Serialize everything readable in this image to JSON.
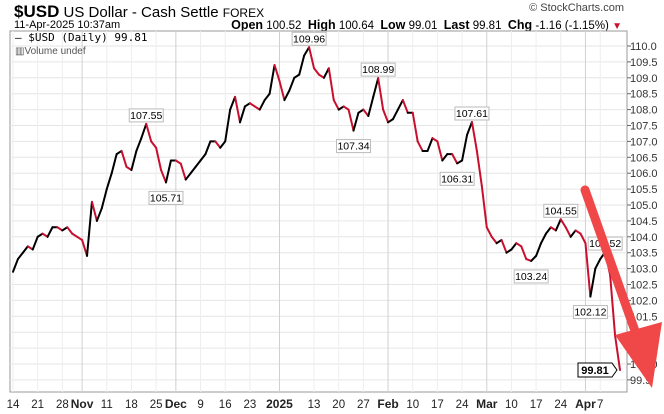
{
  "header": {
    "symbol": "$USD",
    "name": "US Dollar - Cash Settle",
    "exchange": "FOREX",
    "datetime": "11-Apr-2025 10:37am",
    "copyright": "© StockCharts.com",
    "open_label": "Open",
    "open": "100.52",
    "high_label": "High",
    "high": "100.64",
    "low_label": "Low",
    "low": "99.01",
    "last_label": "Last",
    "last": "99.81",
    "chg_label": "Chg",
    "chg": "-1.16 (-1.15%)"
  },
  "legend": {
    "series": "$USD (Daily) 99.81",
    "volume": "Volume undef"
  },
  "colors": {
    "up": "#000000",
    "down": "#c8102e",
    "arrow": "#f04848"
  },
  "chart_data": {
    "type": "line",
    "title": "$USD US Dollar - Cash Settle FOREX",
    "ylim": [
      99.3,
      110.9
    ],
    "yticks": [
      "99.5",
      "100.0",
      "100.5",
      "101.0",
      "101.5",
      "102.0",
      "102.5",
      "103.0",
      "103.5",
      "104.0",
      "104.5",
      "105.0",
      "105.5",
      "106.0",
      "106.5",
      "107.0",
      "107.5",
      "108.0",
      "108.5",
      "109.0",
      "109.5",
      "110.0"
    ],
    "xticks": [
      [
        "14",
        0
      ],
      [
        "21",
        5
      ],
      [
        "28",
        10
      ],
      [
        "Nov",
        14
      ],
      [
        "11",
        19
      ],
      [
        "18",
        24
      ],
      [
        "25",
        29
      ],
      [
        "Dec",
        33
      ],
      [
        "9",
        38
      ],
      [
        "16",
        43
      ],
      [
        "23",
        48
      ],
      [
        "2025",
        54
      ],
      [
        "13",
        61
      ],
      [
        "20",
        66
      ],
      [
        "27",
        71
      ],
      [
        "Feb",
        76
      ],
      [
        "10",
        81
      ],
      [
        "17",
        86
      ],
      [
        "24",
        91
      ],
      [
        "Mar",
        96
      ],
      [
        "10",
        101
      ],
      [
        "17",
        106
      ],
      [
        "24",
        111
      ],
      [
        "Apr",
        116
      ],
      [
        "7",
        119
      ]
    ],
    "values": [
      102.9,
      103.3,
      103.5,
      103.7,
      103.6,
      104.0,
      104.1,
      104.0,
      104.3,
      104.3,
      104.2,
      104.3,
      104.1,
      104.0,
      103.9,
      103.4,
      105.1,
      104.5,
      104.9,
      105.5,
      106.0,
      106.6,
      106.7,
      106.2,
      106.1,
      106.7,
      107.1,
      107.55,
      107.0,
      106.8,
      106.1,
      105.71,
      106.4,
      106.4,
      106.3,
      105.8,
      106.0,
      106.2,
      106.4,
      106.6,
      107.0,
      107.0,
      106.8,
      107.0,
      108.0,
      108.4,
      107.6,
      108.1,
      108.2,
      108.1,
      108.0,
      108.3,
      108.5,
      109.4,
      108.9,
      108.3,
      108.6,
      109.0,
      109.1,
      109.7,
      109.96,
      109.3,
      109.1,
      109.0,
      109.3,
      108.3,
      108.0,
      108.1,
      108.0,
      107.34,
      107.9,
      108.0,
      107.8,
      108.4,
      108.99,
      108.0,
      107.6,
      107.7,
      108.0,
      108.3,
      107.9,
      107.9,
      107.0,
      106.7,
      106.7,
      107.1,
      107.0,
      106.4,
      106.6,
      106.6,
      106.31,
      106.4,
      107.2,
      107.61,
      106.7,
      105.6,
      104.3,
      104.0,
      103.8,
      103.9,
      103.5,
      103.6,
      103.8,
      103.7,
      103.3,
      103.24,
      103.4,
      103.8,
      104.1,
      104.3,
      104.2,
      104.55,
      104.3,
      104.0,
      104.2,
      104.1,
      103.8,
      102.12,
      103.0,
      103.3,
      103.52,
      102.8,
      100.9,
      99.81
    ],
    "annotations": [
      [
        "107.55",
        27,
        "up"
      ],
      [
        "105.71",
        31,
        "down"
      ],
      [
        "109.96",
        60,
        "up"
      ],
      [
        "107.34",
        69,
        "down"
      ],
      [
        "108.99",
        74,
        "up"
      ],
      [
        "106.31",
        90,
        "down"
      ],
      [
        "107.61",
        93,
        "up"
      ],
      [
        "103.24",
        105,
        "down"
      ],
      [
        "104.55",
        111,
        "up"
      ],
      [
        "103.52",
        120,
        "up"
      ],
      [
        "102.12",
        117,
        "down"
      ]
    ],
    "last_label": "99.81"
  }
}
